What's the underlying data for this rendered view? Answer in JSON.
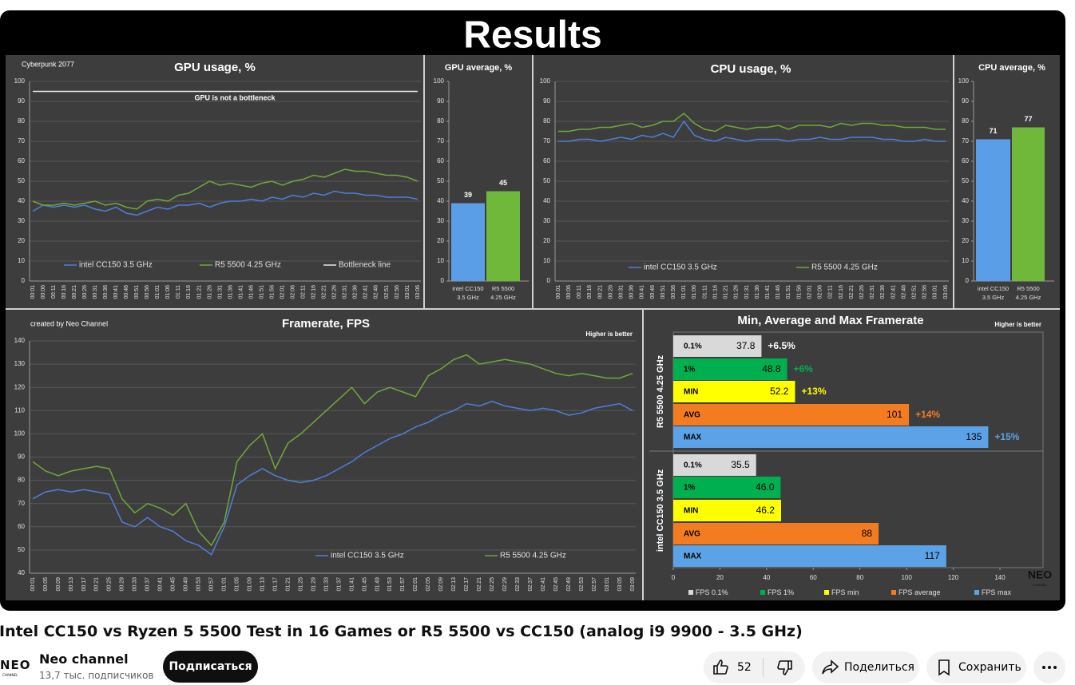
{
  "video": {
    "heading": "Results",
    "watermark": "NEO",
    "watermark_sub": "CHANNEL"
  },
  "chart_data": [
    {
      "type": "line",
      "title": "GPU usage, %",
      "label": "Cyberpunk 2077",
      "annotation": "GPU is not a bottleneck",
      "grid": true,
      "categories": [
        "00:01",
        "00:06",
        "00:11",
        "00:16",
        "00:21",
        "00:26",
        "00:31",
        "00:36",
        "00:41",
        "00:46",
        "00:51",
        "00:56",
        "01:01",
        "01:06",
        "01:11",
        "01:16",
        "01:21",
        "01:26",
        "01:31",
        "01:36",
        "01:41",
        "01:46",
        "01:51",
        "01:56",
        "02:01",
        "02:06",
        "02:11",
        "02:16",
        "02:21",
        "02:26",
        "02:31",
        "02:36",
        "02:41",
        "02:46",
        "02:51",
        "02:56",
        "03:01",
        "03:06"
      ],
      "ylim": [
        0,
        100
      ],
      "yticks": [
        0,
        10,
        20,
        30,
        40,
        50,
        60,
        70,
        80,
        90,
        100
      ],
      "series": [
        {
          "name": "intel  CC150     3.5 GHz",
          "color": "#4f7fd8",
          "values": [
            35,
            38,
            37,
            38,
            37,
            38,
            36,
            35,
            37,
            34,
            33,
            35,
            37,
            36,
            38,
            38,
            39,
            37,
            39,
            40,
            40,
            41,
            40,
            42,
            41,
            43,
            42,
            44,
            43,
            45,
            44,
            44,
            43,
            43,
            42,
            42,
            42,
            41
          ]
        },
        {
          "name": "R5  5500     4.25 GHz",
          "color": "#70a83c",
          "values": [
            40,
            38,
            38,
            39,
            38,
            39,
            40,
            38,
            39,
            37,
            36,
            40,
            41,
            40,
            43,
            44,
            47,
            50,
            48,
            49,
            48,
            47,
            49,
            50,
            48,
            50,
            51,
            53,
            52,
            54,
            56,
            55,
            55,
            54,
            53,
            53,
            52,
            50
          ]
        },
        {
          "name": "Bottleneck line",
          "color": "#e6e6e6",
          "values": [
            95,
            95,
            95,
            95,
            95,
            95,
            95,
            95,
            95,
            95,
            95,
            95,
            95,
            95,
            95,
            95,
            95,
            95,
            95,
            95,
            95,
            95,
            95,
            95,
            95,
            95,
            95,
            95,
            95,
            95,
            95,
            95,
            95,
            95,
            95,
            95,
            95,
            95
          ]
        }
      ]
    },
    {
      "type": "bar",
      "title": "GPU average, %",
      "grid": false,
      "categories": [
        "intel  CC150 3.5 GHz",
        "R5  5500 4.25 GHz"
      ],
      "values": [
        39,
        45
      ],
      "colors": [
        "#5b9ee8",
        "#6fb83a"
      ],
      "ylim": [
        0,
        100
      ],
      "yticks": [
        0,
        10,
        20,
        30,
        40,
        50,
        60,
        70,
        80,
        90,
        100
      ]
    },
    {
      "type": "line",
      "title": "CPU usage, %",
      "grid": true,
      "categories": [
        "00:01",
        "00:06",
        "00:11",
        "00:16",
        "00:21",
        "00:26",
        "00:31",
        "00:36",
        "00:41",
        "00:46",
        "00:51",
        "00:56",
        "01:01",
        "01:06",
        "01:11",
        "01:16",
        "01:21",
        "01:26",
        "01:31",
        "01:36",
        "01:41",
        "01:46",
        "01:51",
        "01:56",
        "02:01",
        "02:06",
        "02:11",
        "02:16",
        "02:21",
        "02:26",
        "02:31",
        "02:36",
        "02:41",
        "02:46",
        "02:51",
        "02:56",
        "03:01",
        "03:06"
      ],
      "ylim": [
        0,
        100
      ],
      "yticks": [
        0,
        10,
        20,
        30,
        40,
        50,
        60,
        70,
        80,
        90,
        100
      ],
      "series": [
        {
          "name": "intel  CC150     3.5 GHz",
          "color": "#4f7fd8",
          "values": [
            70,
            70,
            71,
            71,
            70,
            71,
            72,
            71,
            73,
            72,
            74,
            72,
            80,
            73,
            71,
            70,
            72,
            71,
            70,
            71,
            71,
            71,
            70,
            71,
            71,
            72,
            71,
            71,
            72,
            72,
            72,
            71,
            71,
            70,
            70,
            71,
            70,
            70
          ]
        },
        {
          "name": "R5  5500     4.25 GHz",
          "color": "#70a83c",
          "values": [
            75,
            75,
            76,
            76,
            77,
            77,
            78,
            79,
            77,
            78,
            80,
            80,
            84,
            79,
            76,
            75,
            78,
            77,
            76,
            77,
            77,
            78,
            76,
            78,
            78,
            78,
            77,
            79,
            78,
            79,
            79,
            78,
            78,
            77,
            77,
            77,
            76,
            76
          ]
        }
      ]
    },
    {
      "type": "bar",
      "title": "CPU average, %",
      "grid": false,
      "categories": [
        "intel  CC150 3.5 GHz",
        "R5  5500 4.25 GHz"
      ],
      "values": [
        71,
        77
      ],
      "colors": [
        "#5b9ee8",
        "#6fb83a"
      ],
      "ylim": [
        0,
        100
      ],
      "yticks": [
        0,
        10,
        20,
        30,
        40,
        50,
        60,
        70,
        80,
        90,
        100
      ]
    },
    {
      "type": "line",
      "title": "Framerate, FPS",
      "label": "created by Neo Channel",
      "note": "Higher is better",
      "grid": true,
      "categories": [
        "00:01",
        "00:05",
        "00:09",
        "00:13",
        "00:17",
        "00:21",
        "00:25",
        "00:29",
        "00:33",
        "00:37",
        "00:41",
        "00:45",
        "00:49",
        "00:53",
        "00:57",
        "01:01",
        "01:05",
        "01:09",
        "01:13",
        "01:17",
        "01:21",
        "01:25",
        "01:29",
        "01:33",
        "01:37",
        "01:41",
        "01:45",
        "01:49",
        "01:53",
        "01:57",
        "02:01",
        "02:05",
        "02:09",
        "02:13",
        "02:17",
        "02:21",
        "02:25",
        "02:29",
        "02:33",
        "02:37",
        "02:41",
        "02:45",
        "02:49",
        "02:53",
        "02:57",
        "03:01",
        "03:05",
        "03:09"
      ],
      "ylim": [
        40,
        140
      ],
      "yticks": [
        40,
        50,
        60,
        70,
        80,
        90,
        100,
        110,
        120,
        130,
        140
      ],
      "series": [
        {
          "name": "intel  CC150     3.5 GHz",
          "color": "#4f7fd8",
          "values": [
            72,
            75,
            76,
            75,
            76,
            75,
            74,
            62,
            60,
            64,
            60,
            58,
            54,
            52,
            48,
            60,
            78,
            82,
            85,
            82,
            80,
            79,
            80,
            82,
            85,
            88,
            92,
            95,
            98,
            100,
            103,
            105,
            108,
            110,
            113,
            112,
            114,
            112,
            111,
            110,
            111,
            110,
            108,
            109,
            111,
            112,
            113,
            110
          ]
        },
        {
          "name": "R5  5500     4.25 GHz",
          "color": "#70a83c",
          "values": [
            88,
            84,
            82,
            84,
            85,
            86,
            85,
            72,
            66,
            70,
            68,
            65,
            70,
            58,
            52,
            62,
            88,
            95,
            100,
            85,
            96,
            100,
            105,
            110,
            115,
            120,
            113,
            118,
            120,
            118,
            116,
            125,
            128,
            132,
            134,
            130,
            131,
            132,
            131,
            130,
            128,
            126,
            125,
            126,
            125,
            124,
            124,
            126
          ]
        }
      ]
    },
    {
      "type": "hbar",
      "title": "Min, Average and Max Framerate",
      "note": "Higher is better",
      "categories": [
        "0.1%",
        "1%",
        "MIN",
        "AVG",
        "MAX"
      ],
      "colors": [
        "#d9d9d9",
        "#00b050",
        "#ffff00",
        "#f47c20",
        "#5ba3e6"
      ],
      "legend": [
        "FPS 0.1%",
        "FPS 1%",
        "FPS min",
        "FPS average",
        "FPS max"
      ],
      "xlim": [
        0,
        140
      ],
      "xticks": [
        0,
        20,
        40,
        60,
        80,
        100,
        120,
        140
      ],
      "groups": [
        {
          "name": "R5  5500  4.25 GHz",
          "values": [
            37.8,
            48.8,
            52.2,
            101,
            135
          ],
          "value_labels": [
            "37.8",
            "48.8",
            "52.2",
            "101",
            "135"
          ],
          "changes": [
            "+6.5%",
            "+6%",
            "+13%",
            "+14%",
            "+15%"
          ]
        },
        {
          "name": "intel  CC150  3.5 GHz",
          "values": [
            35.5,
            46.0,
            46.2,
            88,
            117
          ],
          "value_labels": [
            "35.5",
            "46.0",
            "46.2",
            "88",
            "117"
          ]
        }
      ]
    }
  ],
  "page": {
    "video_title": "Intel CC150 vs Ryzen 5 5500 Test in 16 Games or R5 5500 vs CC150 (analog i9 9900 - 3.5 GHz)",
    "channel_logo": "NEO",
    "channel_logo_sub": "CHANNEL",
    "channel_name": "Neo channel",
    "subscribers": "13,7 тыс. подписчиков",
    "subscribe": "Подписаться",
    "likes": "52",
    "share": "Поделиться",
    "save": "Сохранить"
  }
}
